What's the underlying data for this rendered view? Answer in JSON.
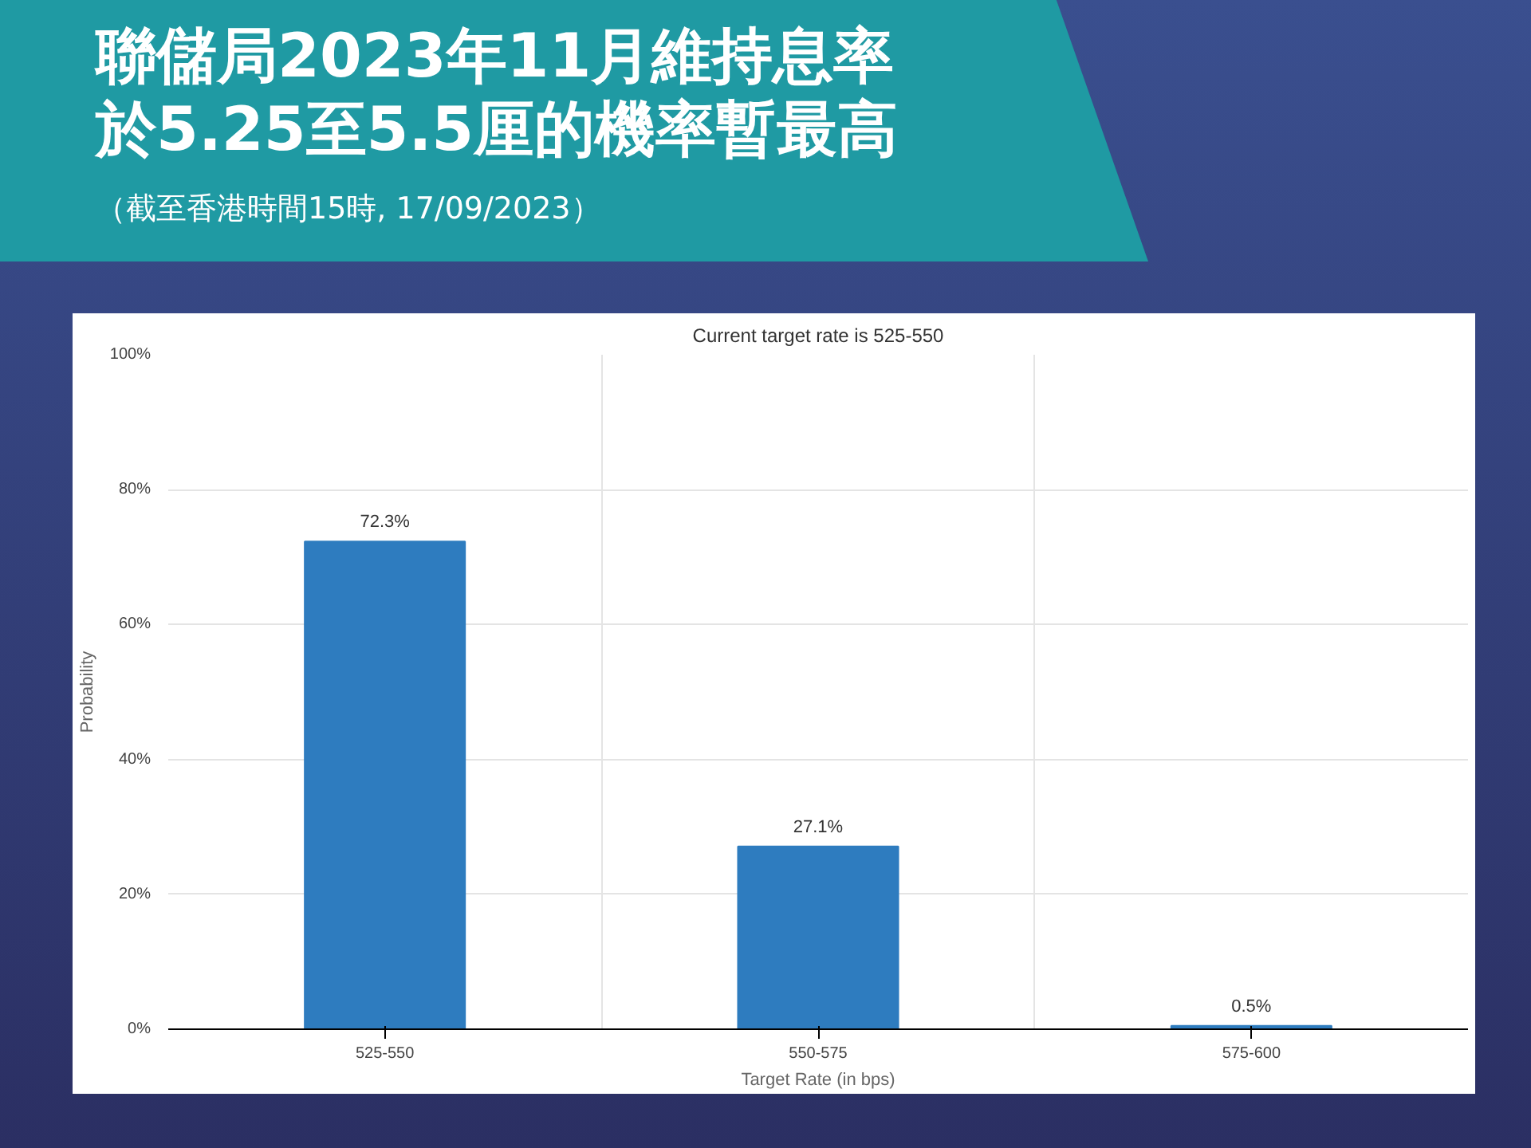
{
  "chart_data": {
    "type": "bar",
    "title": "聯儲局2023年11月維持息率於5.25至5.5厘的機率暫最高",
    "subtitle": "Current target rate is 525-550",
    "annotations": [
      "（截至香港時間15時, 17/09/2023）"
    ],
    "xlabel": "Target Rate (in bps)",
    "ylabel": "Probability",
    "categories": [
      "525-550",
      "550-575",
      "575-600"
    ],
    "values": [
      72.3,
      27.1,
      0.5
    ],
    "value_labels": [
      "72.3%",
      "27.1%",
      "0.5%"
    ],
    "color": "#2e7cbf",
    "ylim": [
      0,
      100
    ],
    "yticks": [
      {
        "value": 0,
        "label": "0%"
      },
      {
        "value": 20,
        "label": "20%"
      },
      {
        "value": 40,
        "label": "40%"
      },
      {
        "value": 60,
        "label": "60%"
      },
      {
        "value": 80,
        "label": "80%"
      },
      {
        "value": 100,
        "label": "100%"
      }
    ],
    "grid": true
  }
}
